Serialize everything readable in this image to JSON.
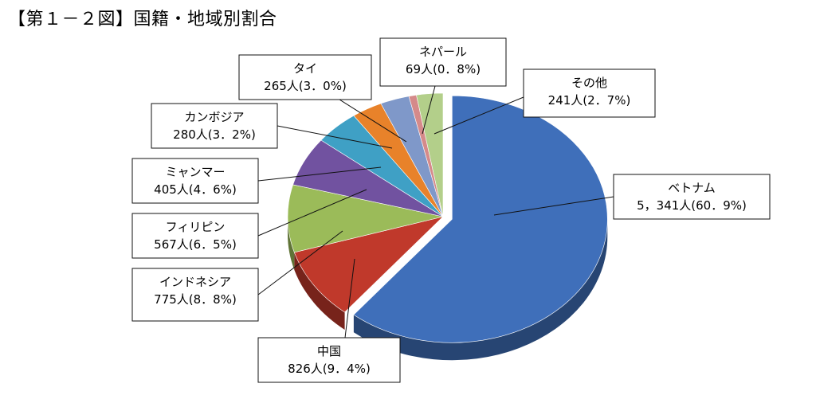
{
  "title": "【第１－２図】国籍・地域別割合",
  "chart_data": {
    "type": "pie",
    "title": "【第１－２図】国籍・地域別割合",
    "categories": [
      "ベトナム",
      "中国",
      "インドネシア",
      "フィリピン",
      "ミャンマー",
      "カンボジア",
      "タイ",
      "ネパール",
      "その他"
    ],
    "values": [
      5341,
      826,
      775,
      567,
      405,
      280,
      265,
      69,
      241
    ],
    "value_labels": [
      "5，341人(60．9%)",
      "826人(9．4%)",
      "775人(8．8%)",
      "567人(6．5%)",
      "405人(4．6%)",
      "280人(3．2%)",
      "265人(3．0%)",
      "69人(0．8%)",
      "241人(2．7%)"
    ],
    "percentages": [
      60.9,
      9.4,
      8.8,
      6.5,
      4.6,
      3.2,
      3.0,
      0.8,
      2.7
    ],
    "colors": [
      "#3f6fba",
      "#c0392b",
      "#9bbb59",
      "#7152a0",
      "#3fa0c5",
      "#e8822a",
      "#7f98c9",
      "#d58a8a",
      "#b3cf8a"
    ],
    "legend": "none",
    "style": "3d-exploded"
  }
}
